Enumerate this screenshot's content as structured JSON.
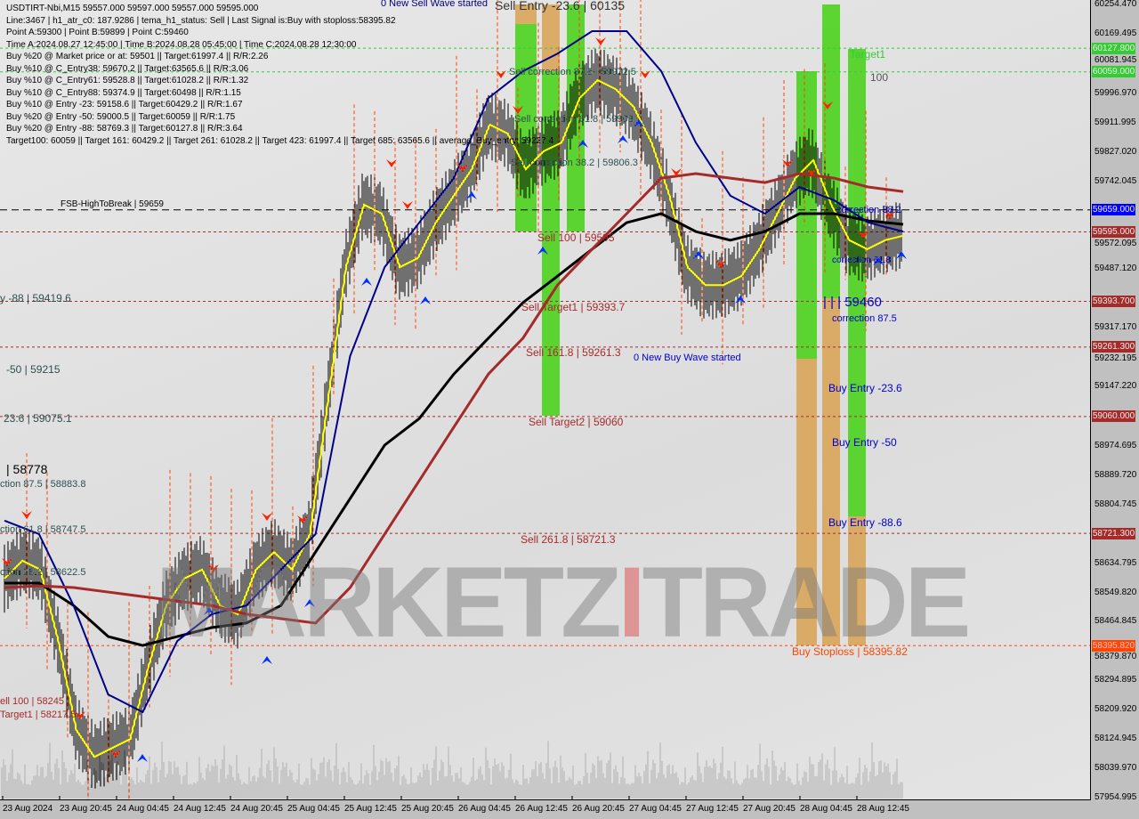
{
  "header": {
    "lines": [
      "USDTIRT-Nbi,M15  59557.000 59597.000 59557.000 59595.000",
      "Line:3467 | h1_atr_c0: 187.9286 | tema_h1_status: Sell | Last Signal is:Buy with stoploss:58395.82",
      "Point A:59300 | Point B:59899 | Point C:59460",
      "Time A:2024.08.27 12:45:00 | Time B:2024.08.28 05:45:00 | Time C:2024.08.28 12:30:00",
      "Buy %20 @ Market price or at: 59501 || Target:61997.4 || R/R:2.26",
      "Buy %10 @ C_Entry38: 59670.2 || Target:63565.6 || R/R:3.06",
      "Buy %10 @ C_Entry61: 59528.8 || Target:61028.2 || R/R:1.32",
      "Buy %10 @ C_Entry88: 59374.9 || Target:60498 || R/R:1.15",
      "Buy %10 @ Entry -23: 59158.6 || Target:60429.2 || R/R:1.67",
      "Buy %20 @ Entry -50: 59000.5 || Target:60059 || R/R:1.75",
      "Buy %20 @ Entry -88: 58769.3 || Target:60127.8 || R/R:3.64",
      "Target100: 60059 || Target 161: 60429.2 || Target 261: 61028.2 || Target 423: 61997.4 || Target 685: 63565.6 || average_Buy_entry: 59227.4"
    ]
  },
  "watermark": "MARKETZITRADE",
  "colors": {
    "plot_bg": "#e0e0e0",
    "black_ma": "#000000",
    "blue_ma": "#00008b",
    "red_ma": "#a52a2a",
    "yellow_ma": "#ffff00",
    "green_zone": "#4cd21e",
    "orange_zone": "#d8a55a",
    "target_line": "#32cd32",
    "level_line": "#a52a2a"
  },
  "chart_data": {
    "type": "line",
    "title": "USDTIRT-Nbi,M15",
    "ylim": [
      57954.995,
      60254.47
    ],
    "y_ticks": [
      "60254.470",
      "60169.495",
      "60081.945",
      "59996.970",
      "59911.995",
      "59827.020",
      "59742.045",
      "59572.095",
      "59487.120",
      "59317.170",
      "59232.195",
      "59147.220",
      "58974.695",
      "58889.720",
      "58804.745",
      "58634.795",
      "58549.820",
      "58464.845",
      "58379.870",
      "58294.895",
      "58209.920",
      "58124.945",
      "58039.970",
      "57954.995"
    ],
    "x_ticks": [
      "23 Aug 2024",
      "23 Aug 20:45",
      "24 Aug 04:45",
      "24 Aug 12:45",
      "24 Aug 20:45",
      "25 Aug 04:45",
      "25 Aug 12:45",
      "25 Aug 20:45",
      "26 Aug 04:45",
      "26 Aug 12:45",
      "26 Aug 20:45",
      "27 Aug 04:45",
      "27 Aug 12:45",
      "27 Aug 20:45",
      "28 Aug 04:45",
      "28 Aug 12:45"
    ],
    "price": [
      58590,
      58642,
      58616,
      58409,
      58151,
      58073,
      58099,
      58125,
      58332,
      58512,
      58590,
      58616,
      58512,
      58486,
      58616,
      58667,
      58616,
      58719,
      59106,
      59493,
      59674,
      59648,
      59493,
      59519,
      59622,
      59700,
      59777,
      59906,
      59880,
      59777,
      59829,
      59854,
      59983,
      60035,
      60009,
      59958,
      59854,
      59700,
      59493,
      59441,
      59441,
      59467,
      59545,
      59648,
      59751,
      59803,
      59674,
      59571,
      59545,
      59571,
      59584
    ],
    "series": [
      {
        "color": "#000000",
        "values": [
          58577,
          58577,
          58512,
          58422,
          58396,
          58422,
          58448,
          58461,
          58512,
          58667,
          58822,
          58977,
          59054,
          59183,
          59287,
          59390,
          59467,
          59545,
          59622,
          59648,
          59596,
          59571,
          59596,
          59648,
          59648,
          59627,
          59617
        ]
      },
      {
        "color": "#00008b",
        "values": [
          58758,
          58719,
          58512,
          58254,
          58203,
          58409,
          58487,
          58512,
          58616,
          58719,
          59235,
          59493,
          59622,
          59751,
          59983,
          60061,
          60112,
          60177,
          60177,
          60061,
          59854,
          59700,
          59648,
          59725,
          59687,
          59622,
          59596
        ]
      },
      {
        "color": "#a52a2a",
        "values": [
          58564,
          58569,
          58564,
          58551,
          58538,
          58525,
          58512,
          58487,
          58474,
          58461,
          58564,
          58719,
          58874,
          59029,
          59183,
          59287,
          59441,
          59545,
          59648,
          59751,
          59764,
          59751,
          59738,
          59764,
          59751,
          59725,
          59712
        ]
      }
    ],
    "levels": [
      {
        "price": 60127.8,
        "label": "60127.800",
        "color": "#32cd32",
        "style": "dashed"
      },
      {
        "price": 60059.0,
        "label": "60059.000",
        "color": "#32cd32",
        "style": "dashed"
      },
      {
        "price": 59659.0,
        "label": "59659.000",
        "color": "#0000ff",
        "style": "dashed-black"
      },
      {
        "price": 59595.0,
        "label": "59595.000",
        "color": "#a52a2a",
        "style": "dashed"
      },
      {
        "price": 59393.7,
        "label": "59393.700",
        "color": "#a52a2a",
        "style": "dashed"
      },
      {
        "price": 59261.3,
        "label": "59261.300",
        "color": "#a52a2a",
        "style": "dashed"
      },
      {
        "price": 59060.0,
        "label": "59060.000",
        "color": "#a52a2a",
        "style": "dashed"
      },
      {
        "price": 58721.3,
        "label": "58721.300",
        "color": "#a52a2a",
        "style": "dashed"
      },
      {
        "price": 58395.82,
        "label": "58395.820",
        "color": "#ff4500",
        "style": "dashed"
      }
    ],
    "annotations": [
      {
        "text": "0 New Sell Wave started",
        "color": "#000080"
      },
      {
        "text": "Sell Entry -23.6 | 60135",
        "color": "#333333"
      },
      {
        "text": "Sell correction 87.5 | 59972.5",
        "color": "#2f4f4f"
      },
      {
        "text": "Sell correction 61.8 | 59903",
        "color": "#2f4f4f"
      },
      {
        "text": "Sell correction 38.2 | 59806.3",
        "color": "#2f4f4f"
      },
      {
        "text": "Sell 100 | 59595",
        "color": "#a52a2a"
      },
      {
        "text": "Sell Target1 | 59393.7",
        "color": "#a52a2a"
      },
      {
        "text": "Sell 161.8 | 59261.3",
        "color": "#a52a2a"
      },
      {
        "text": "Sell Target2 | 59060",
        "color": "#a52a2a"
      },
      {
        "text": "Sell  261.8 | 58721.3",
        "color": "#a52a2a"
      },
      {
        "text": "0 New Buy Wave started",
        "color": "#0000cd"
      },
      {
        "text": "FSB-HighToBreak | 59659",
        "color": "#000000"
      },
      {
        "text": "Target1",
        "color": "#32cd32"
      },
      {
        "text": "100",
        "color": "#555555"
      },
      {
        "text": "correction 38.2",
        "color": "#0000cd"
      },
      {
        "text": "correction 61.8",
        "color": "#0000cd"
      },
      {
        "text": "| | | 59460",
        "color": "#0000cd"
      },
      {
        "text": "correction 87.5",
        "color": "#0000cd"
      },
      {
        "text": "Buy Entry -23.6",
        "color": "#0000cd"
      },
      {
        "text": "Buy Entry -50",
        "color": "#0000cd"
      },
      {
        "text": "Buy Entry -88.6",
        "color": "#0000cd"
      },
      {
        "text": "Buy Stoploss | 58395.82",
        "color": "#ff4500"
      },
      {
        "text": "y -88 | 59419.6",
        "color": "#2f4f4f"
      },
      {
        "text": "-50 | 59215",
        "color": "#2f4f4f"
      },
      {
        "text": "23.6 | 59075.1",
        "color": "#2f4f4f"
      },
      {
        "text": "| 58778",
        "color": "#000000"
      },
      {
        "text": "ction 87.5 | 58883.8",
        "color": "#2f4f4f"
      },
      {
        "text": "ction 61.8 | 58747.5",
        "color": "#2f4f4f"
      },
      {
        "text": "ction 38.2 | 58622.5",
        "color": "#2f4f4f"
      },
      {
        "text": "ell 100 | 58245",
        "color": "#a52a2a"
      },
      {
        "text": "Target1 | 58217.5",
        "color": "#a52a2a"
      }
    ]
  }
}
